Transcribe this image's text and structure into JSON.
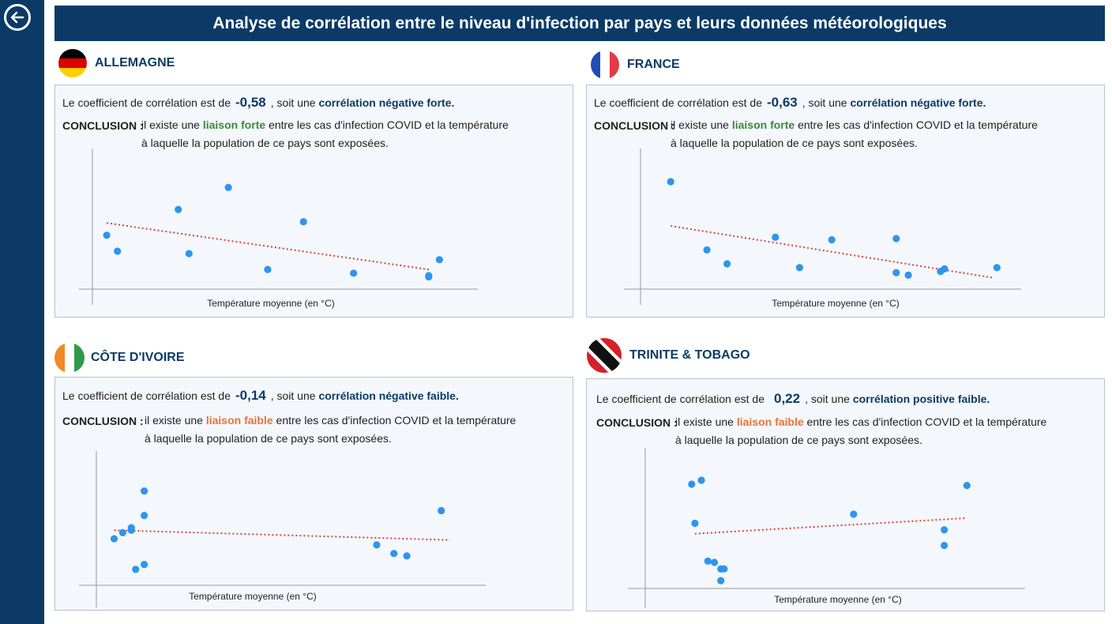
{
  "title": "Analyse de corrélation entre le niveau d'infection par pays et leurs données météorologiques",
  "icons": {
    "back": "arrow-left-circle-icon"
  },
  "colors": {
    "navy": "#0b3a66",
    "point": "#2e95ee",
    "trend": "#d9443c",
    "strong": "#3a8a3a",
    "weak": "#e8733c"
  },
  "common": {
    "coef_intro": "Le coefficient de corrélation est de",
    "soit": ", soit une",
    "conclusion_label": "CONCLUSION :",
    "il_existe": "il existe une",
    "conclusion_rest": "entre les cas d'infection COVID et la température",
    "conclusion_line2": "à laquelle la population de ce pays sont exposées.",
    "xlabel": "Température moyenne (en °C)"
  },
  "countries": [
    {
      "name": "ALLEMAGNE",
      "flag": "germany-flag-icon",
      "coef": "-0,58",
      "correlation": "corrélation négative forte.",
      "liaison": "liaison forte"
    },
    {
      "name": "FRANCE",
      "flag": "france-flag-icon",
      "coef": "-0,63",
      "correlation": "corrélation négative forte.",
      "liaison": "liaison forte"
    },
    {
      "name": "CÔTE D'IVOIRE",
      "flag": "cote-divoire-flag-icon",
      "coef": "-0,14",
      "correlation": "corrélation négative faible.",
      "liaison": "liaison faible"
    },
    {
      "name": "TRINITE & TOBAGO",
      "flag": "trinidad-tobago-flag-icon",
      "coef": "0,22",
      "correlation": "corrélation positive faible.",
      "liaison": "liaison faible"
    }
  ],
  "chart_data": [
    {
      "type": "scatter",
      "xlabel": "Température moyenne (en °C)",
      "ylabel": "",
      "xlim": [
        0,
        100
      ],
      "ylim": [
        0,
        100
      ],
      "points": [
        [
          4,
          44
        ],
        [
          7,
          31
        ],
        [
          24,
          65
        ],
        [
          27,
          29
        ],
        [
          38,
          83
        ],
        [
          49,
          16
        ],
        [
          59,
          55
        ],
        [
          73,
          13
        ],
        [
          94,
          11
        ],
        [
          97,
          24
        ],
        [
          94,
          10
        ]
      ],
      "trend": [
        [
          4,
          54
        ],
        [
          94,
          16
        ]
      ]
    },
    {
      "type": "scatter",
      "xlabel": "Température moyenne (en °C)",
      "ylabel": "",
      "xlim": [
        0,
        100
      ],
      "ylim": [
        0,
        100
      ],
      "points": [
        [
          12,
          85
        ],
        [
          21,
          31
        ],
        [
          26,
          20
        ],
        [
          38,
          41
        ],
        [
          44,
          17
        ],
        [
          52,
          39
        ],
        [
          68,
          40
        ],
        [
          68,
          13
        ],
        [
          71,
          11
        ],
        [
          79,
          14
        ],
        [
          80,
          16
        ],
        [
          93,
          17
        ]
      ],
      "trend": [
        [
          12,
          50
        ],
        [
          92,
          9
        ]
      ]
    },
    {
      "type": "scatter",
      "xlabel": "Température moyenne (en °C)",
      "ylabel": "",
      "xlim": [
        0,
        100
      ],
      "ylim": [
        0,
        100
      ],
      "points": [
        [
          10,
          38
        ],
        [
          12,
          43
        ],
        [
          14,
          45
        ],
        [
          14,
          47
        ],
        [
          15,
          13
        ],
        [
          17,
          77
        ],
        [
          17,
          57
        ],
        [
          17,
          17
        ],
        [
          71,
          33
        ],
        [
          75,
          26
        ],
        [
          78,
          24
        ],
        [
          86,
          61
        ]
      ],
      "trend": [
        [
          10,
          45
        ],
        [
          88,
          37
        ]
      ]
    },
    {
      "type": "scatter",
      "xlabel": "Température moyenne (en °C)",
      "ylabel": "",
      "xlim": [
        0,
        100
      ],
      "ylim": [
        0,
        100
      ],
      "points": [
        [
          8,
          80
        ],
        [
          11,
          83
        ],
        [
          9,
          50
        ],
        [
          13,
          21
        ],
        [
          15,
          20
        ],
        [
          17,
          15
        ],
        [
          18,
          15
        ],
        [
          17,
          6
        ],
        [
          58,
          57
        ],
        [
          86,
          45
        ],
        [
          86,
          33
        ],
        [
          93,
          79
        ]
      ],
      "trend": [
        [
          9,
          42
        ],
        [
          93,
          54
        ]
      ]
    }
  ]
}
